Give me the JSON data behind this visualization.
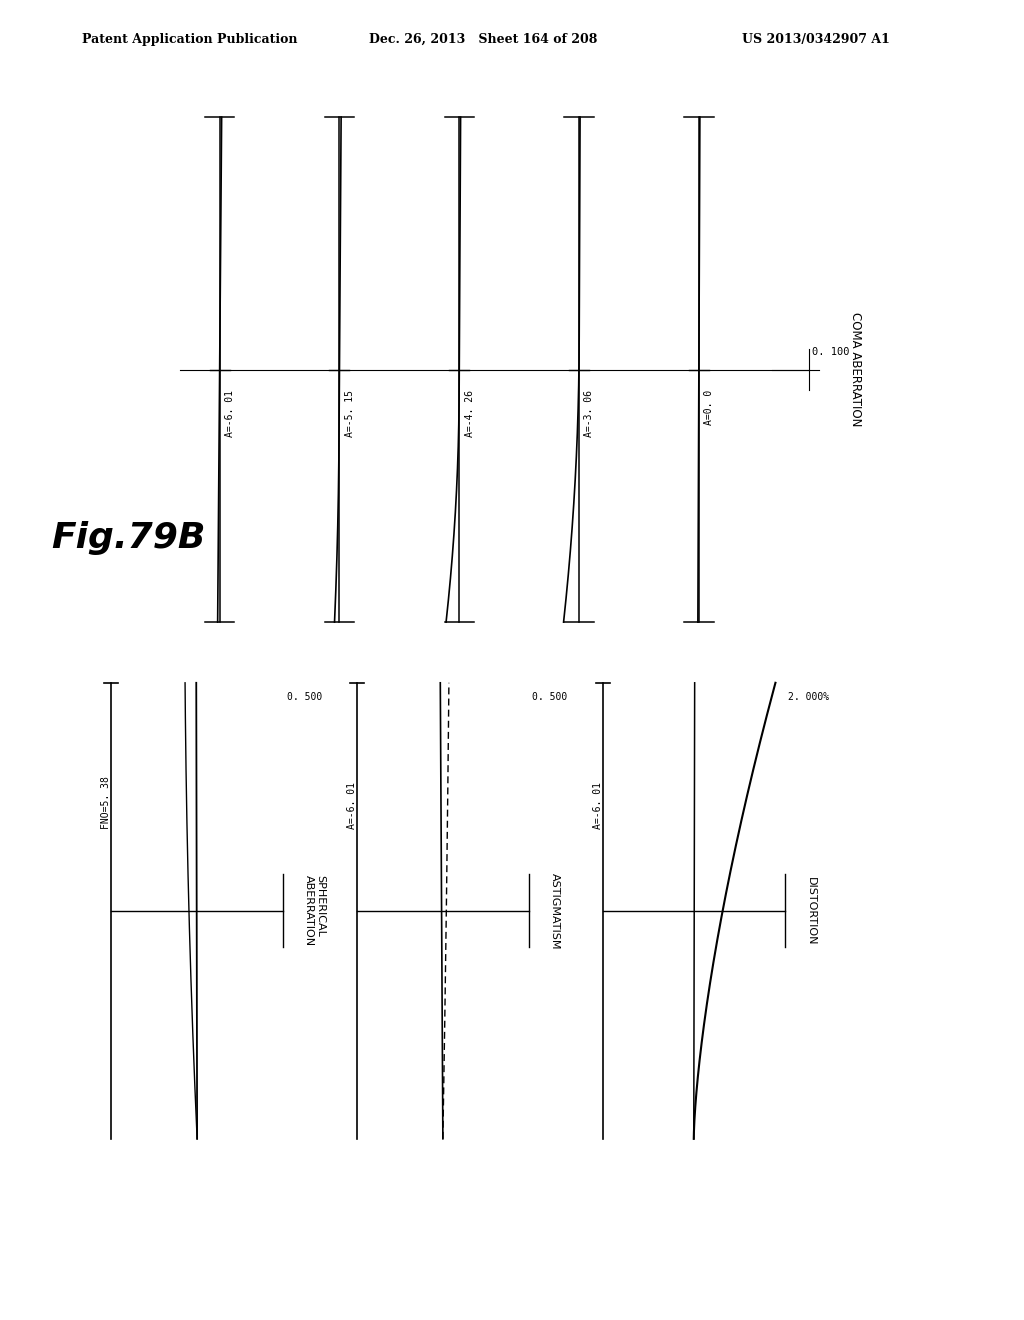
{
  "header_left": "Patent Application Publication",
  "header_center": "Dec. 26, 2013   Sheet 164 of 208",
  "header_right": "US 2013/0342907 A1",
  "fig_label": "Fig.79B",
  "coma_title": "COMA ABERRATION",
  "coma_scale": "0. 100",
  "coma_panels": [
    {
      "label": "A=-6. 01"
    },
    {
      "label": "A=-5. 15"
    },
    {
      "label": "A=-4. 26"
    },
    {
      "label": "A=-3. 06"
    },
    {
      "label": "A=0. 0"
    }
  ],
  "distortion_title": "DISTORTION",
  "distortion_scale": "2. 000%",
  "distortion_label": "A=-6. 01",
  "astigmatism_title": "ASTIGMATISM",
  "astigmatism_scale": "0. 500",
  "astigmatism_label": "A=-6. 01",
  "spherical_title": "SPHERICAL\nABERRATION",
  "spherical_scale": "0. 500",
  "spherical_label": "FNO=5. 38",
  "background_color": "#ffffff",
  "line_color": "#000000"
}
